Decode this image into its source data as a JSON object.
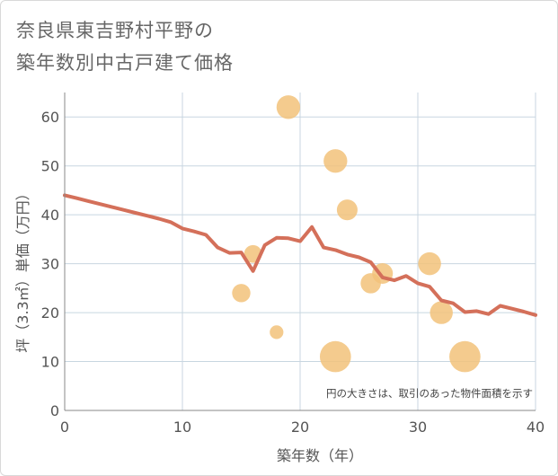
{
  "title": {
    "line1": "奈良県東吉野村平野の",
    "line2": "築年数別中古戸建て価格"
  },
  "chart_data": {
    "type": "scatter",
    "title": "奈良県東吉野村平野の築年数別中古戸建て価格",
    "xlabel": "築年数（年）",
    "ylabel": "坪（3.3㎡）単価（万円）",
    "xlim": [
      0,
      40
    ],
    "ylim": [
      0,
      65
    ],
    "x_ticks": [
      0,
      10,
      20,
      30,
      40
    ],
    "y_ticks": [
      0,
      10,
      20,
      30,
      40,
      50,
      60
    ],
    "grid": true,
    "note": "円の大きさは、取引のあった物件面積を示す",
    "colors": {
      "trend": "#d4705a",
      "bubble": "#f2c27a",
      "grid": "#c8d6e0"
    },
    "bubbles": [
      {
        "x": 19,
        "y": 62,
        "size": 3
      },
      {
        "x": 23,
        "y": 51,
        "size": 3
      },
      {
        "x": 24,
        "y": 41,
        "size": 2.3
      },
      {
        "x": 16,
        "y": 32,
        "size": 1.7
      },
      {
        "x": 27,
        "y": 28,
        "size": 2.3
      },
      {
        "x": 31,
        "y": 30,
        "size": 2.8
      },
      {
        "x": 26,
        "y": 26,
        "size": 2.2
      },
      {
        "x": 15,
        "y": 24,
        "size": 1.8
      },
      {
        "x": 32,
        "y": 20,
        "size": 2.8
      },
      {
        "x": 18,
        "y": 16,
        "size": 1
      },
      {
        "x": 23,
        "y": 11,
        "size": 5.2
      },
      {
        "x": 34,
        "y": 11,
        "size": 5.2
      }
    ],
    "trend_line": {
      "x": [
        0,
        1,
        2,
        3,
        4,
        5,
        6,
        7,
        8,
        9,
        10,
        11,
        12,
        13,
        14,
        15,
        16,
        17,
        18,
        19,
        20,
        21,
        22,
        23,
        24,
        25,
        26,
        27,
        28,
        29,
        30,
        31,
        32,
        33,
        34,
        35,
        36,
        37,
        38,
        39,
        40
      ],
      "y": [
        44,
        43.4,
        42.8,
        42.2,
        41.6,
        41,
        40.4,
        39.8,
        39.2,
        38.5,
        37.2,
        36.6,
        35.9,
        33.3,
        32.2,
        32.3,
        28.5,
        33.8,
        35.3,
        35.2,
        34.6,
        37.5,
        33.3,
        32.8,
        31.9,
        31.3,
        30.3,
        27.2,
        26.6,
        27.5,
        26,
        25.3,
        22.5,
        21.9,
        20.1,
        20.3,
        19.7,
        21.4,
        20.8,
        20.2,
        19.5
      ]
    }
  }
}
